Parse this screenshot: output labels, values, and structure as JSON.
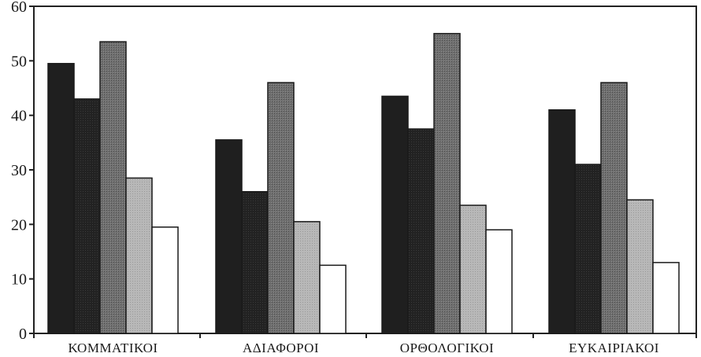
{
  "chart_data": {
    "type": "bar",
    "title": "",
    "xlabel": "",
    "ylabel": "",
    "ylim": [
      0,
      60
    ],
    "yticks": [
      0,
      10,
      20,
      30,
      40,
      50,
      60
    ],
    "grid": false,
    "legend": "none",
    "categories": [
      "ΚΟΜΜΑΤΙΚΟΙ",
      "ΑΔΙΑΦΟΡΟΙ",
      "ΟΡΘΟΛΟΓΙΚΟΙ",
      "ΕΥΚΑΙΡΙΑΚΟΙ"
    ],
    "series": [
      {
        "values": [
          49.5,
          35.5,
          43.5,
          41
        ]
      },
      {
        "values": [
          43,
          26,
          37.5,
          31
        ]
      },
      {
        "values": [
          53.5,
          46,
          55,
          46
        ]
      },
      {
        "values": [
          28.5,
          20.5,
          23.5,
          24.5
        ]
      },
      {
        "values": [
          19.5,
          12.5,
          19,
          13
        ]
      }
    ]
  },
  "colors": {
    "series": [
      "#1f1f1f",
      "#2a2a2a",
      "#6e6e6e",
      "#b4b4b4",
      "#ffffff"
    ],
    "axis": "#222222",
    "bar_stroke": "#1a1a1a"
  }
}
